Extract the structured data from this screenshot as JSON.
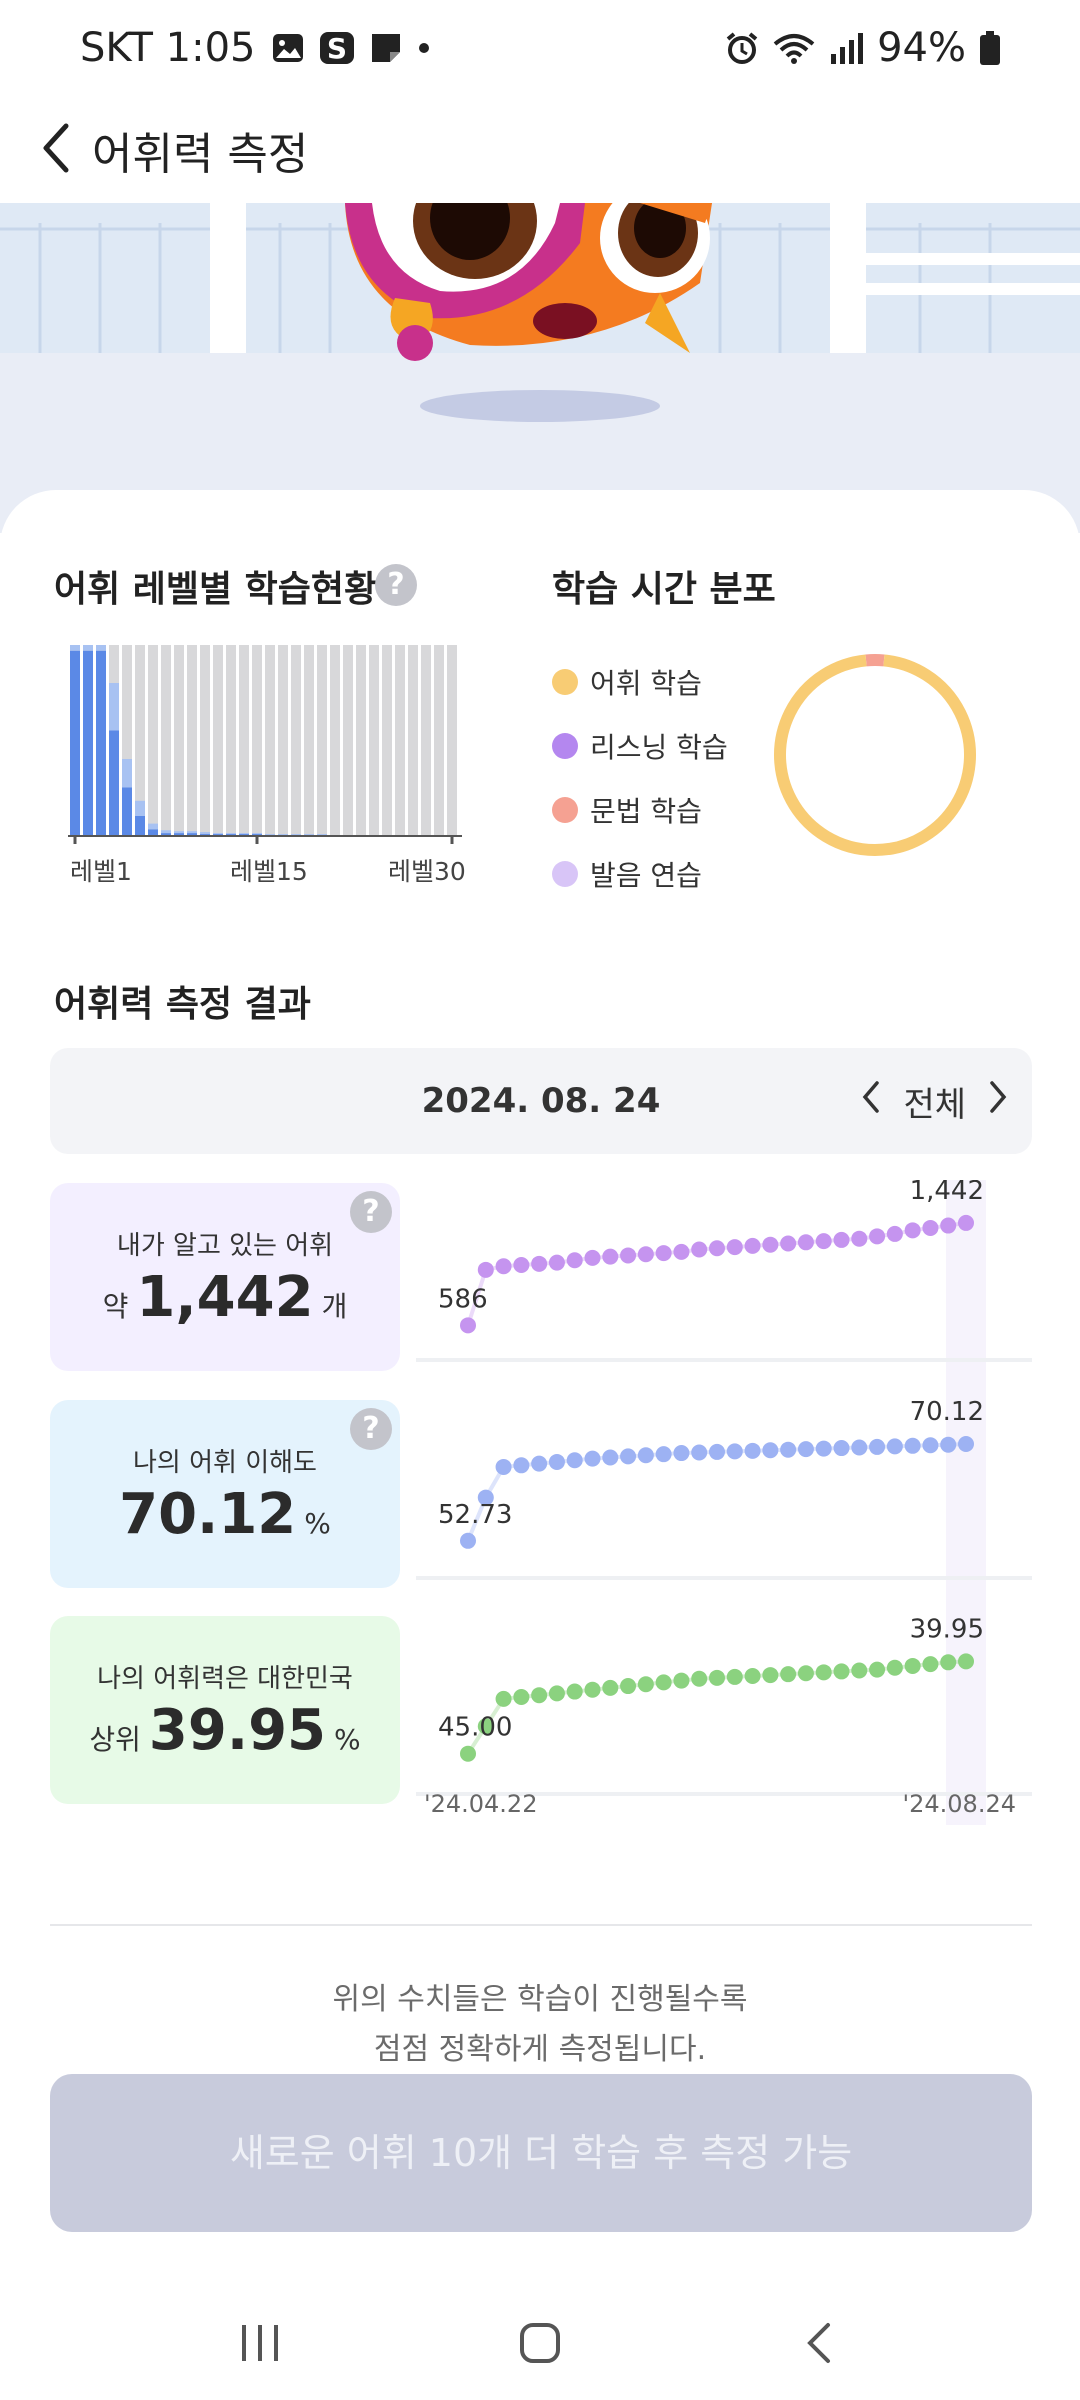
{
  "status_bar": {
    "carrier_time": "SKT 1:05",
    "battery": "94%",
    "icons": [
      "gallery-icon",
      "samsung-s-icon",
      "note-icon",
      "alarm-icon",
      "wifi-icon",
      "signal-icon",
      "battery-icon"
    ]
  },
  "header": {
    "title": "어휘력 측정",
    "back_icon": "chevron-left-icon"
  },
  "level_section": {
    "title": "어휘 레벨별 학습현황",
    "tick_labels": [
      "레벨1",
      "레벨15",
      "레벨30"
    ]
  },
  "time_section": {
    "title": "학습 시간 분포",
    "legend": [
      {
        "label": "어휘 학습",
        "color": "#f8cc74"
      },
      {
        "label": "리스닝 학습",
        "color": "#b487ef"
      },
      {
        "label": "문법 학습",
        "color": "#f5a192"
      },
      {
        "label": "발음 연습",
        "color": "#d8c5f7"
      }
    ]
  },
  "result_section": {
    "title": "어휘력 측정 결과",
    "date": "2024. 08. 24",
    "filter": "전체"
  },
  "metrics": [
    {
      "label": "내가 알고 있는 어휘",
      "prefix": "약",
      "value": "1,442",
      "suffix": "개",
      "bg": "#f3efff",
      "color": "#c594ef",
      "has_help": true
    },
    {
      "label": "나의 어휘 이해도",
      "prefix": "",
      "value": "70.12",
      "suffix": "%",
      "bg": "#e4f3fd",
      "color": "#9db2f3",
      "has_help": true
    },
    {
      "label": "나의 어휘력은 대한민국",
      "prefix": "상위",
      "value": "39.95",
      "suffix": "%",
      "bg": "#e7fae7",
      "color": "#8bd27f",
      "has_help": false
    }
  ],
  "note": {
    "line1": "위의 수치들은 학습이 진행될수록",
    "line2": "점점 정확하게 측정됩니다."
  },
  "cta": {
    "label": "새로운 어휘 10개 더 학습 후 측정 가능"
  },
  "nav": {
    "icons": [
      "recent-apps-icon",
      "home-icon",
      "back-icon"
    ]
  },
  "chart_data": [
    {
      "type": "bar",
      "title": "어휘 레벨별 학습현황",
      "categories": [
        1,
        2,
        3,
        4,
        5,
        6,
        7,
        8,
        9,
        10,
        11,
        12,
        13,
        14,
        15,
        16,
        17,
        18,
        19,
        20,
        21,
        22,
        23,
        24,
        25,
        26,
        27,
        28,
        29,
        30
      ],
      "tick_labels": [
        "레벨1",
        "레벨15",
        "레벨30"
      ],
      "series": [
        {
          "color": "#5b89e6",
          "values": [
            0.97,
            0.97,
            0.97,
            0.55,
            0.25,
            0.1,
            0.03,
            0.01,
            0.01,
            0.01,
            0.005,
            0.005,
            0.005,
            0.005,
            0.005,
            0,
            0,
            0,
            0,
            0,
            0,
            0,
            0,
            0,
            0,
            0,
            0,
            0,
            0,
            0
          ]
        },
        {
          "color": "#a8c2f2",
          "values": [
            0.03,
            0.03,
            0.03,
            0.25,
            0.15,
            0.08,
            0.03,
            0.015,
            0.01,
            0.01,
            0.01,
            0.005,
            0.005,
            0.005,
            0.005,
            0.005,
            0.005,
            0.005,
            0.005,
            0.005,
            0,
            0,
            0,
            0,
            0,
            0,
            0,
            0,
            0,
            0
          ]
        }
      ],
      "ylim": [
        0,
        1
      ]
    },
    {
      "type": "pie",
      "title": "학습 시간 분포",
      "labels": [
        "어휘 학습",
        "리스닝 학습",
        "문법 학습",
        "발음 연습"
      ],
      "values": [
        97,
        0,
        3,
        0
      ]
    },
    {
      "type": "line",
      "xlabels": [
        "'24.04.22",
        "'24.08.24"
      ],
      "series": [
        {
          "metric": "vocab",
          "start_label": "586",
          "end_label": "1,442",
          "values": [
            586,
            1050,
            1080,
            1090,
            1100,
            1110,
            1130,
            1150,
            1160,
            1170,
            1180,
            1190,
            1200,
            1220,
            1230,
            1240,
            1250,
            1260,
            1270,
            1280,
            1290,
            1300,
            1310,
            1330,
            1350,
            1380,
            1400,
            1420,
            1442
          ],
          "ylim": [
            480,
            1550
          ]
        },
        {
          "metric": "understanding",
          "start_label": "52.73",
          "end_label": "70.12",
          "values": [
            52.73,
            60.5,
            66.0,
            66.3,
            66.6,
            66.9,
            67.2,
            67.5,
            67.7,
            67.9,
            68.1,
            68.3,
            68.5,
            68.6,
            68.7,
            68.8,
            68.9,
            69.0,
            69.1,
            69.2,
            69.3,
            69.4,
            69.5,
            69.6,
            69.7,
            69.8,
            69.9,
            70.0,
            70.12
          ],
          "ylim": [
            50,
            73
          ]
        },
        {
          "metric": "rank",
          "start_label": "45.00",
          "end_label": "39.95",
          "values": [
            45.0,
            43.5,
            42.0,
            41.9,
            41.8,
            41.7,
            41.6,
            41.5,
            41.4,
            41.3,
            41.2,
            41.1,
            41.0,
            40.9,
            40.85,
            40.8,
            40.75,
            40.7,
            40.65,
            40.6,
            40.55,
            40.5,
            40.45,
            40.4,
            40.3,
            40.2,
            40.1,
            40.0,
            39.95
          ],
          "ylim": [
            46,
            39
          ],
          "ticks_inverted": true
        }
      ]
    }
  ]
}
